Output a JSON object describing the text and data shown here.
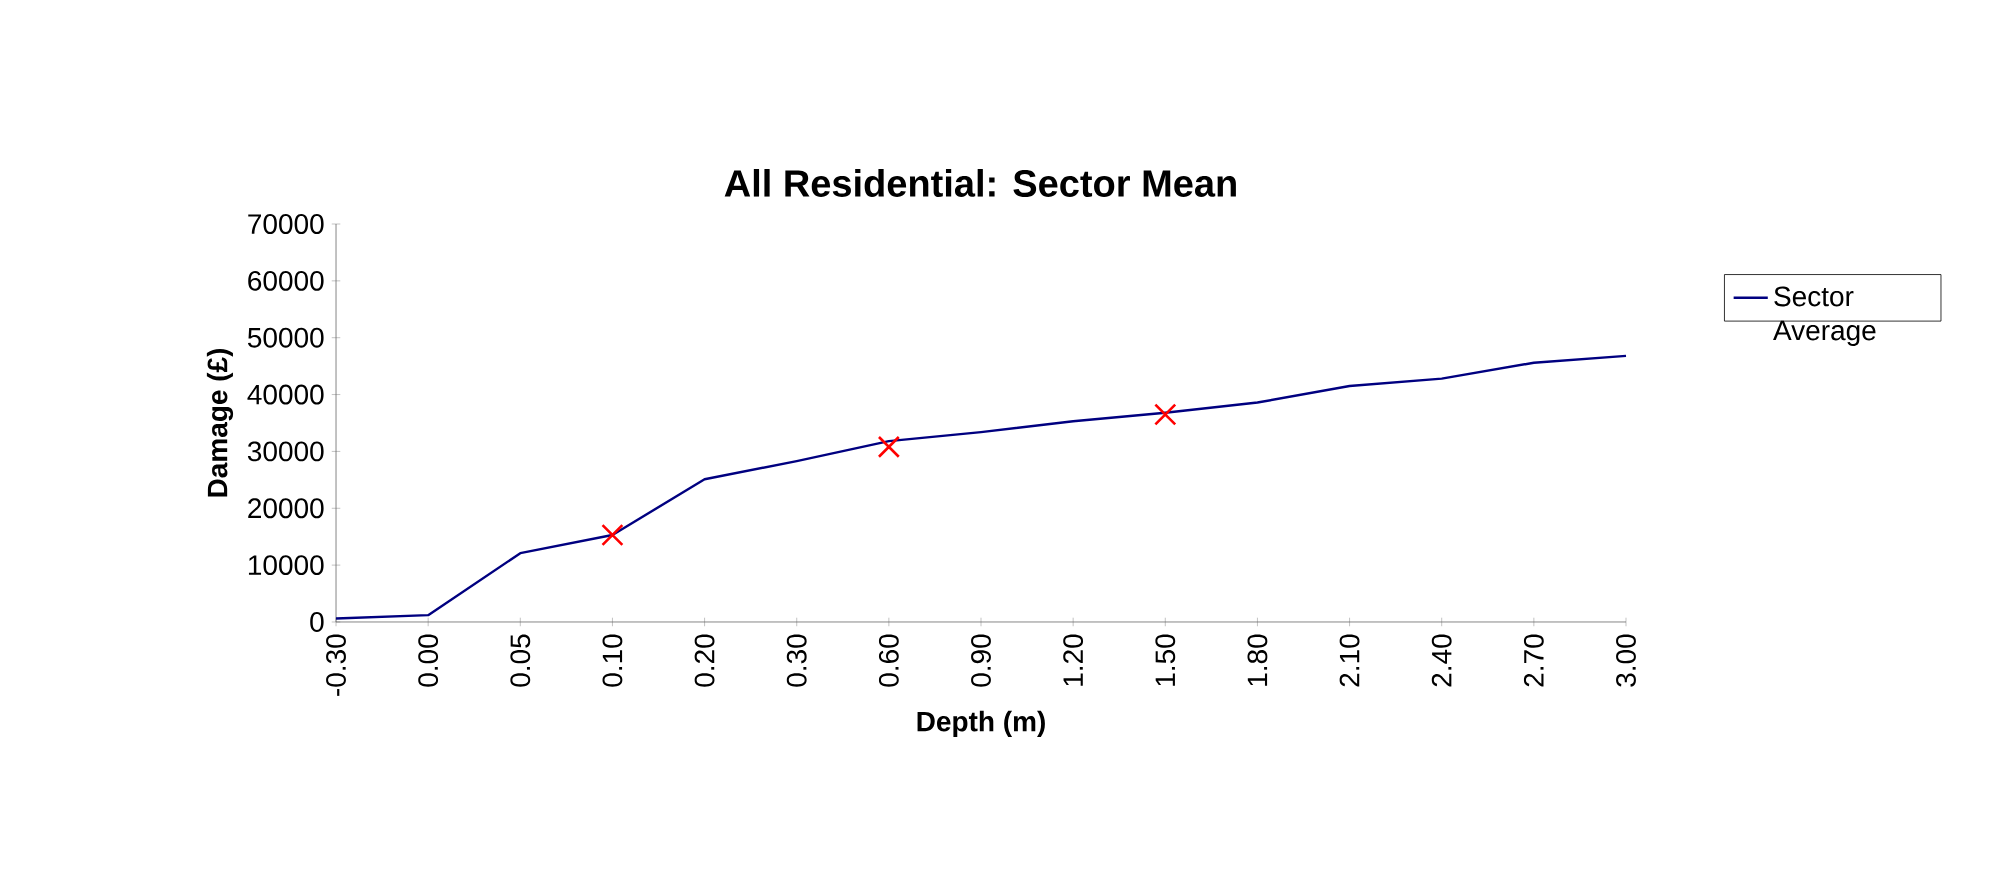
{
  "chart_data": {
    "type": "line",
    "title": "All Residential:  Sector Mean",
    "xlabel": "Depth (m)",
    "ylabel": "Damage (£)",
    "categories": [
      "-0.30",
      "0.00",
      "0.05",
      "0.10",
      "0.20",
      "0.30",
      "0.60",
      "0.90",
      "1.20",
      "1.50",
      "1.80",
      "2.10",
      "2.40",
      "2.70",
      "3.00"
    ],
    "series": [
      {
        "name": "Sector Average",
        "color": "#000080",
        "values": [
          600,
          1200,
          12100,
          15300,
          25100,
          28300,
          31800,
          33400,
          35300,
          36800,
          38600,
          41500,
          42800,
          45600,
          46800
        ]
      },
      {
        "type": "scatter",
        "color": "#ff0000",
        "marker": "cross",
        "x": [
          "0.10",
          "0.60",
          "1.50"
        ],
        "values": [
          15300,
          30800,
          36500
        ]
      }
    ],
    "ylim": [
      0,
      70000
    ],
    "yticks": [
      0,
      10000,
      20000,
      30000,
      40000,
      50000,
      60000,
      70000
    ],
    "grid": false,
    "legend": "right",
    "marker": "none",
    "line_style": "solid"
  }
}
